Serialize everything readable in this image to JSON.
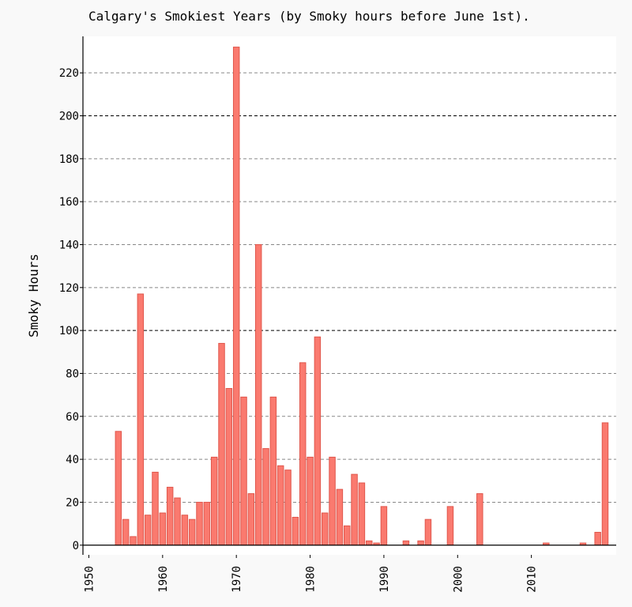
{
  "colors": {
    "page_background": "#f9f9f9",
    "plot_background": "#ffffff",
    "bar_fill": "#fa7a6f",
    "bar_stroke": "#e0574c",
    "grid_major": "#000000",
    "grid_minor": "#888888",
    "axis": "#000000"
  },
  "chart_data": {
    "type": "bar",
    "title": "Calgary's Smokiest Years (by Smoky hours before June 1st).",
    "xlabel": "",
    "ylabel": "Smoky Hours",
    "xlim": [
      1949.2,
      2021.5
    ],
    "ylim": [
      -4.5,
      237
    ],
    "x_ticks": [
      1950,
      1960,
      1970,
      1980,
      1990,
      2000,
      2010
    ],
    "y_ticks": [
      0,
      20,
      40,
      60,
      80,
      100,
      120,
      140,
      160,
      180,
      200,
      220
    ],
    "y_major_grid": [
      100,
      200
    ],
    "grid": true,
    "bar_width_years": 0.8,
    "x": [
      1954,
      1955,
      1956,
      1957,
      1958,
      1959,
      1960,
      1961,
      1962,
      1963,
      1964,
      1965,
      1966,
      1967,
      1968,
      1969,
      1970,
      1971,
      1972,
      1973,
      1974,
      1975,
      1976,
      1977,
      1978,
      1979,
      1980,
      1981,
      1982,
      1983,
      1984,
      1985,
      1986,
      1987,
      1988,
      1989,
      1990,
      1993,
      1995,
      1996,
      1999,
      2003,
      2012,
      2017,
      2019,
      2020
    ],
    "values": [
      53,
      12,
      4,
      117,
      14,
      34,
      15,
      27,
      22,
      14,
      12,
      20,
      20,
      41,
      94,
      73,
      232,
      69,
      24,
      140,
      45,
      69,
      37,
      35,
      13,
      85,
      41,
      97,
      15,
      41,
      26,
      9,
      33,
      29,
      2,
      1,
      18,
      2,
      2,
      12,
      18,
      24,
      1,
      1,
      6,
      57
    ]
  }
}
